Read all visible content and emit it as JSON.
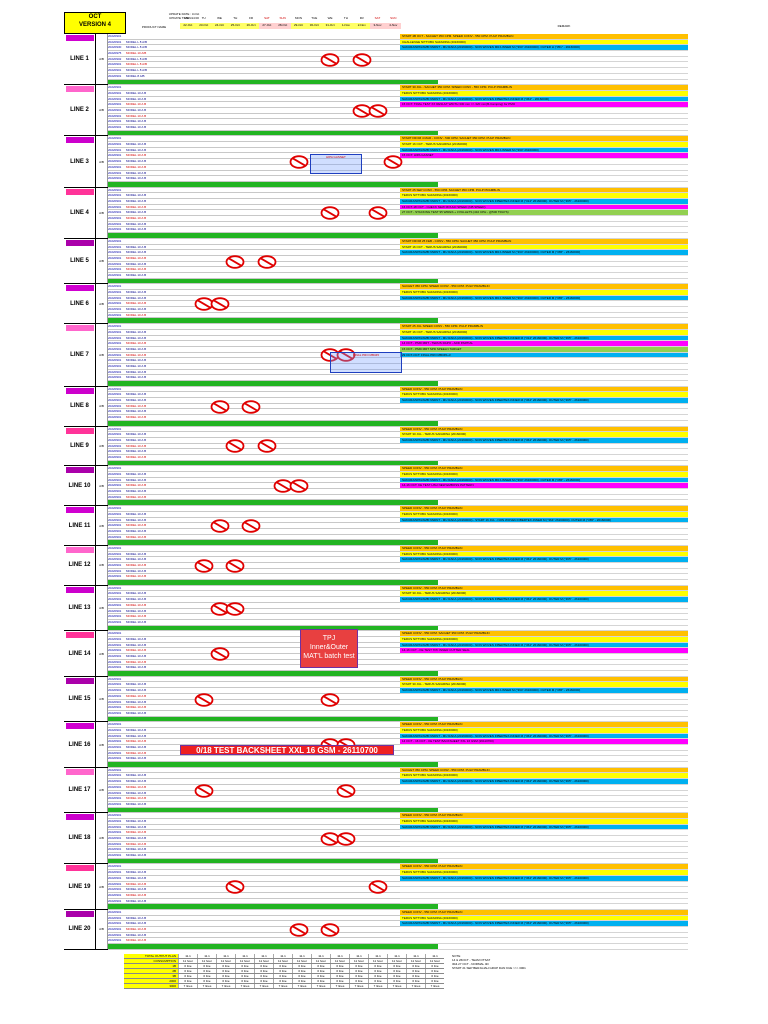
{
  "header": {
    "month": "OCT",
    "version": "VERSION 4",
    "update_date": "UPDATE DATE : 3-Oct",
    "update_time": "UPDATE TIME : 14:00",
    "product_col": "PRODUCT NAME",
    "remark_col": "REMARK",
    "days": [
      "MON",
      "TU",
      "WE",
      "TH",
      "FR",
      "SAT",
      "SUN",
      "MON",
      "TUE",
      "WE",
      "TH",
      "FR",
      "SAT",
      "SUN"
    ],
    "dates": [
      "22-Oct",
      "23-Oct",
      "24-Oct",
      "25-Oct",
      "26-Oct",
      "27-Oct",
      "28-Oct",
      "29-Oct",
      "30-Oct",
      "31-Oct",
      "1-Nov",
      "2-Nov",
      "3-Nov",
      "4-Nov"
    ]
  },
  "lines": [
    {
      "name": "LINE 1",
      "shift": "A/B",
      "rows": [
        "20220901",
        "20220901 MODEL L 8 A/B",
        "20220930 MODEL L 8 A/B",
        "20220975 MODEL 10 A/B",
        "20220902 MODEL L 8 A/B",
        "20220901 MODEL L 8 A/B",
        "20220901 MODEL L 8 A/B",
        "20220901 MODEL 8 A/B"
      ],
      "remarks": [
        "START 4B OCT - SACHET 350 CPM. SPEED CONV - 550 CPM. PULP PRAMBLIN",
        "CHALLENGE NITTOBU SAFARINA (20160000)",
        "SAKURA/NPD/AMB NNDNT - MU RAKA (20160000) - NON WOVEN MRJ-INNER M (\"364\" 26160000). OUTER H (\"351\" - 26160000)"
      ]
    },
    {
      "name": "LINE 2",
      "shift": "A/B",
      "rows": [
        "20220901",
        "20220901 MODEL 10 A B",
        "20220901 MODEL 10 A B",
        "20220901 MODEL 10 A B",
        "20220901 MODEL 10 A B",
        "20220901 MODEL 10 A B",
        "20220901 MODEL 10 A B",
        "20220901 MODEL 10 A B"
      ],
      "remarks": [
        "START 30 JUL - SACHET 350 CPM. SPEED CONV - 550 CPM. PULP PRAMBLIN",
        "TERUS NITTOBU SAFARINA (20160000)",
        "SAKURA/NPD/AMB NNDNT - MU RAKA (20160000) - NON WOVEN FIBERTEX-INNER M (\"364\" - 26160000)",
        "15 OCT: TRIAL TEST XX RESULT WIDTH 330 mm => 320 mm(B-Camping) for PMO"
      ]
    },
    {
      "name": "LINE 3",
      "shift": "A/B",
      "rows": [
        "20220901",
        "20220901 MODEL 10 A B",
        "20220901 MODEL 10 A B",
        "20220901 MODEL 10 A B",
        "20220901 MODEL 10 A B",
        "20220901 MODEL 10 A B",
        "20220901 MODEL 10 A B",
        "20220901 MODEL 10 A B"
      ],
      "remarks": [
        "START FROM 4 MAR - CONV - 500 CPM. SACHET 350 CPM. PULP PRAMBLIN",
        "START 16 OCT - TERUS SAFARINA (20160000)",
        "SAKURA/NPD/AMB NNDNT - MU RAKA (20160000) - NON WOVEN MRJ-INNER M (\"364\" 26160000)",
        "15 OCT: HIPA GASNET"
      ]
    },
    {
      "name": "LINE 4",
      "shift": "A/B",
      "rows": [
        "20220901",
        "20220901 MODEL 10 A B",
        "20220901 MODEL 10 A B",
        "20220901 MODEL 10 A B",
        "20220901 MODEL 10 A B",
        "20220901 MODEL 10 A B",
        "20220901 MODEL 10 A B",
        "20220901 MODEL 10 A B"
      ],
      "remarks": [
        "START 25 SEP CONV - 550 CPM. SACHET 350 CPM. PULP PRAMBLIN",
        "TERUS NITTOBU SAFARINA (20160000)",
        "SAKURA/NPD/AMB NNDNT - MU RAKA (20160000) - NON WOVEN FIBERTEX-INNER M (\"314\" 26160000). OUTER M (\"365\" - 26160000)",
        "16 OCT-18 OCT - CHECK NEW MOULD SPEED (NB SPEED)",
        "27 OCT - STACKING TEST 95 WIRES + 3 PALLETS (410 CPH - @500 TRAYS)"
      ]
    },
    {
      "name": "LINE 5",
      "shift": "A/B",
      "rows": [
        "20220901",
        "20220901 MODEL 10 A B",
        "20220901 MODEL 10 A B",
        "20220901 MODEL 10 A B",
        "20220901 MODEL 10 A B",
        "20220901 MODEL 10 A B",
        "20220901 MODEL 10 A B"
      ],
      "remarks": [
        "START FROM 25 FEB - CONV - 550 CPM. SACHET 350 CPM. PULP PRAMBLIN",
        "START 16 OCT - TERUS SAFARINA (20160000)",
        "SAKURA/NPD/AMB NNDNT - MU RAKA (20160000) - NON WOVEN MRJ-INNER M (\"364\" 26160000). OUTER M (\"365\" - 26160000)"
      ]
    },
    {
      "name": "LINE 6",
      "shift": "A/B",
      "rows": [
        "20220901",
        "20220901 MODEL 10 A B",
        "20220901 MODEL 10 A B",
        "20220901 MODEL 10 A B",
        "20220901 MODEL 10 A B",
        "20220901 MODEL 10 A B"
      ],
      "remarks": [
        "SACHET 350 CPM. SPEED CONV - 550 CPM. PULP PRAMBLIN",
        "TERUS NITTOBU SAFARINA (20160000)",
        "SAKURA/NPD/AMB NNDNT - MU RAKA (20160000) - NON WOVEN MRJ-INNER M (\"364\" 26160000). OUTER M (\"365\" - 26160000)"
      ]
    },
    {
      "name": "LINE 7",
      "shift": "A/B",
      "rows": [
        "20220901",
        "20220901 MODEL 10 A B",
        "20220901 MODEL 10 A B",
        "20220901 MODEL 10 A B",
        "20220901 MODEL 10 A B",
        "20220901 MODEL 10 A B",
        "20220901 MODEL 10 A B",
        "20220901 MODEL 10 A B",
        "20220901 MODEL 10 A B",
        "20220901 MODEL 10 A B"
      ],
      "remarks": [
        "START 25 JUL SPEED CONV - 550 CPM. PULP PRAMBLIN",
        "START 16 OCT - TERUS SAFARINA (20160000)",
        "SAKURA/NPD/AMB NNDNT - MU RAKA (20160000) - NON WOVEN FIBERTEX-INNER M (\"314\" 26160000). OUTER M (\"365\" - 26160000)",
        "14 OCT - PMD MRT - TERUS RAPO - ADD PARTIAL",
        "15 OCT - PMD MRT SPD SPEELN TARGET",
        "29 OCT-OCT: FINAL PRO MB345+3"
      ]
    },
    {
      "name": "LINE 8",
      "shift": "A/B",
      "rows": [
        "20220901",
        "20220901 MODEL 10 A B",
        "20220901 MODEL 10 A B",
        "20220901 MODEL 10 A B",
        "20220901 MODEL 10 A B",
        "20220901 MODEL 10 A B"
      ],
      "remarks": [
        "SPEED CONV - 550 CPM. PULP PRAMBLIN",
        "TERUS NITTOBU SAFARINA (20160000)",
        "SAKURA/NPD/AMB NNDNT - MU RAKA (20160000) - NON WOVEN FIBERTEX-INNER M (\"364\" 26160000). OUTER M (\"365\" - 26160000)"
      ]
    },
    {
      "name": "LINE 9",
      "shift": "A/B",
      "rows": [
        "20220901",
        "20220901 MODEL 10 A B",
        "20220901 MODEL 10 A B",
        "20220901 MODEL 10 A B",
        "20220901 MODEL 10 A B",
        "20220901 MODEL 10 A B"
      ],
      "remarks": [
        "SPEED CONV - 550 CPM. PULP PRAMBLIN",
        "START 30 JUL - TERUS SAFARINA (20160000)",
        "SAKURA/NPD/AMB NNDNT - MU RAKA (20160000) - NON WOVEN FIBERTEX-INNER M (\"364\" 26160000). OUTER M (\"365\" - 26160000)"
      ]
    },
    {
      "name": "LINE 10",
      "shift": "A/B",
      "rows": [
        "20220901",
        "20220901 MODEL 10 A B",
        "20220901 MODEL 10 A B",
        "20220901 MODEL 10 A B",
        "20220901 MODEL 10 A B",
        "20220901 MODEL 10 A B"
      ],
      "remarks": [
        "SPEED CONV - 550 CPM. PULP PRAMBLIN",
        "TERUS NITTOBU SAFARINA (20160000)",
        "SAKURA/NPD/AMB NNDNT - MU RAKA (20160000) - NON WOVEN MRJ-INNER M (\"364\" 26160000). OUTER M (\"365\" - 26160000)",
        "14-16 OCT: KE TEST HSU NEW EMBOSS PATTERN"
      ]
    },
    {
      "name": "LINE 11",
      "shift": "A/B",
      "rows": [
        "20220901",
        "20220901 MODEL 10 A B",
        "20220901 MODEL 10 A B",
        "20220901 MODEL 10 A B",
        "20220901 MODEL 10 A B",
        "20220901 MODEL 10 A B"
      ],
      "remarks": [
        "SPEED CONV - 550 CPM. PULP PRAMBLIN",
        "TERUS NITTOBU SAFARINA (20160000)",
        "SAKURA/NPD/AMB NNDNT - MU RAKA (20160000) - START 16 JUL - NON WOVEN FIBERTEX-INNER M (\"364\" 26160000). OUTER M (\"365\" - 26160000)"
      ]
    },
    {
      "name": "LINE 12",
      "shift": "A/B",
      "rows": [
        "20220901",
        "20220901 MODEL 10 A B",
        "20220901 MODEL 10 A B",
        "20220901 MODEL 10 A B",
        "20220901 MODEL 10 A B",
        "20220901 MODEL 10 A B"
      ],
      "remarks": [
        "SPEED CONV - 550 CPM. PULP PRAMBLIN",
        "TERUS NITTOBU SAFARINA (20160000)",
        "SAKURA/NPD/AMB NNDNT - MU RAKA (20160000) - NON WOVEN FIBERTEX-INNER M (\"364\" 26160000). OUTER M (\"365\" - 26160000)"
      ]
    },
    {
      "name": "LINE 13",
      "shift": "A/B",
      "rows": [
        "20220901",
        "20220901 MODEL 10 A B",
        "20220901 MODEL 10 A B",
        "20220901 MODEL 10 A B",
        "20220901 MODEL 10 A B",
        "20220901 MODEL 10 A B",
        "20220901 MODEL 10 A B"
      ],
      "remarks": [
        "SPEED CONV - 550 CPM. PULP PRAMBLIN",
        "START 30 JUL - TERUS SAFARINA (20160000)",
        "SAKURA/NPD/AMB NNDNT - MU RAKA (20160000) - NON WOVEN FIBERTEX-INNER M (\"364\" 26160000). OUTER M (\"365\" - 26160000)"
      ]
    },
    {
      "name": "LINE 14",
      "shift": "A/B",
      "rows": [
        "20220901",
        "20220901 MODEL 10 A B",
        "20220901 MODEL 10 A B",
        "20220901 MODEL 10 A B",
        "20220901 MODEL 10 A B",
        "20220901 MODEL 10 A B",
        "20220901 MODEL 10 A B"
      ],
      "remarks": [
        "SPEED CONV - 550 CPM. SACHET 350 CPM. PULP PRAMBLIN",
        "TERUS NITTOBU SAFARINA (20160000)",
        "SAKURA/NPD/AMB NNDNT - MU RAKA (20160000) - NON WOVEN FIBERTEX-INNER M (\"364\" 26160000). OUTER M (\"365\" - 26160000)",
        "14-16 OCT - KE TEST TPF INNER CUTTER SEAL"
      ]
    },
    {
      "name": "LINE 15",
      "shift": "A/B",
      "rows": [
        "20220901",
        "20220901 MODEL 10 A B",
        "20220901 MODEL 10 A B",
        "20220901 MODEL 10 A B",
        "20220901 MODEL 10 A B",
        "20220901 MODEL 10 A B",
        "20220901 MODEL 10 A B"
      ],
      "remarks": [
        "SPEED CONV - 550 CPM. PULP PRAMBLIN",
        "START 30 JUL - TERUS SAFARINA (20160000)",
        "SAKURA/NPD/AMB NNDNT - MU RAKA (20160000) - NON WOVEN MRJ-INNER M (\"364\" 26160000). OUTER M (\"365\" - 26160000)"
      ]
    },
    {
      "name": "LINE 16",
      "shift": "A/B",
      "rows": [
        "20220901",
        "20220901 MODEL 10 A B",
        "20220901 MODEL 10 A B",
        "20220901 MODEL 10 A B",
        "20220901 MODEL 10 A B",
        "20220901 MODEL 10 A B",
        "20220901 MODEL 10 A B"
      ],
      "remarks": [
        "SPEED CONV - 550 CPM. PULP PRAMBLIN",
        "TERUS NITTOBU SAFARINA (20160000)",
        "SAKURA/NPD/AMB NNDNT - MU RAKA (20160000) - NON WOVEN FIBERTEX-INNER M (\"364\" 26160000). OUTER M (\"365\" - 26160000)",
        "14 OCT - 16 OCT - KE TEST BACKSHEET XXL 16 GSM (26110700)"
      ]
    },
    {
      "name": "LINE 17",
      "shift": "A/B",
      "rows": [
        "20220901",
        "20220901 MODEL 10 A B",
        "20220901 MODEL 10 A B",
        "20220901 MODEL 10 A B",
        "20220901 MODEL 10 A B",
        "20220901 MODEL 10 A B",
        "20220901 MODEL 10 A B"
      ],
      "remarks": [
        "SACHET 350 CPM. SPEED CONV - 550 CPM. PULP PRAMBLIN",
        "TERUS NITTOBU SAFARINA (20160000)",
        "SAKURA/NPD/AMB NNDNT - MU RAKA (20160000) - NON WOVEN FIBERTEX-INNER M (\"364\" 26160000). OUTER M (\"365\" - 26160000)"
      ]
    },
    {
      "name": "LINE 18",
      "shift": "A/B",
      "rows": [
        "20220901",
        "20220901 MODEL 10 A B",
        "20220901 MODEL 10 A B",
        "20220901 MODEL 10 A B",
        "20220901 MODEL 10 A B",
        "20220901 MODEL 10 A B",
        "20220901 MODEL 10 A B",
        "20220901 MODEL 10 A B"
      ],
      "remarks": [
        "SPEED CONV - 550 CPM. PULP PRAMBLIN",
        "TERUS NITTOBU SAFARINA (20160000)",
        "SAKURA/NPD/AMB NNDNT - MU RAKA (20160000) - NON WOVEN FIBERTEX-INNER M (\"364\" 26160000). OUTER M (\"365\" - 26160000)"
      ]
    },
    {
      "name": "LINE 19",
      "shift": "A/B",
      "rows": [
        "20220901",
        "20220901 MODEL 10 A B",
        "20220901 MODEL 10 A B",
        "20220901 MODEL 10 A B",
        "20220901 MODEL 10 A B",
        "20220901 MODEL 10 A B",
        "20220901 MODEL 10 A B"
      ],
      "remarks": [
        "SPEED CONV - 550 CPM. PULP PRAMBLIN",
        "TERUS NITTOBU SAFARINA (20160000)",
        "SAKURA/NPD/AMB NNDNT - MU RAKA (20160000) - NON WOVEN FIBERTEX-INNER M (\"364\" 26160000). OUTER M (\"365\" - 26160000)"
      ]
    },
    {
      "name": "LINE 20",
      "shift": "A/B",
      "rows": [
        "20220901",
        "20220901 MODEL 10 A B",
        "20220901 MODEL 10 A B",
        "20220901 MODEL 10 A B",
        "20220901 MODEL 10 A B",
        "20220901 MODEL 10 A B"
      ],
      "remarks": [
        "SPEED CONV - 550 CPM. PULP PRAMBLIN",
        "TERUS NITTOBU SAFARINA (20160000)",
        "SAKURA/NPD/AMB NNDNT - MU RAKA (20160000) - NON WOVEN FIBERTEX-INNER M (\"364\" 26160000). OUTER M (\"365\" - 26160000)"
      ]
    }
  ],
  "overlays": {
    "line3_box": "HIPA GASNET",
    "line7_box": "FINAL PRO MB345",
    "line14_box": "TPJ\nInner&Outer\nMAT'L batch test",
    "line16_banner": "0/18 TEST BACKSHEET XXL 16 GSM - 26110700"
  },
  "footer": {
    "rows": [
      {
        "label": "TOTAL OUTPUT PLAN",
        "values": [
          "11.1",
          "11.1",
          "11.1",
          "11.1",
          "11.1",
          "11.1",
          "11.1",
          "11.1",
          "11.1",
          "11.1",
          "11.1",
          "11.1",
          "11.1",
          "11.1"
        ]
      },
      {
        "label": "CONSUMPTION",
        "values": [
          "11 hour",
          "11 hour",
          "11 hour",
          "11 hour",
          "11 hour",
          "11 hour",
          "11 hour",
          "11 hour",
          "11 hour",
          "11 hour",
          "11 hour",
          "11 hour",
          "11 hour",
          "11 hour"
        ]
      },
      {
        "label": "1B",
        "values": [
          "0 line",
          "0 line",
          "0 line",
          "0 line",
          "0 line",
          "0 line",
          "0 line",
          "0 line",
          "0 line",
          "0 line",
          "0 line",
          "0 line",
          "0 line",
          "0 line"
        ]
      },
      {
        "label": "2B",
        "values": [
          "0 line",
          "0 line",
          "0 line",
          "0 line",
          "0 line",
          "0 line",
          "0 line",
          "0 line",
          "0 line",
          "0 line",
          "0 line",
          "0 line",
          "0 line",
          "0 line"
        ]
      },
      {
        "label": "3B",
        "values": [
          "0 line",
          "0 line",
          "0 line",
          "0 line",
          "0 line",
          "0 line",
          "0 line",
          "0 line",
          "0 line",
          "0 line",
          "0 line",
          "0 line",
          "0 line",
          "0 line"
        ]
      },
      {
        "label": "2000",
        "values": [
          "0 line",
          "0 line",
          "0 line",
          "0 line",
          "0 line",
          "0 line",
          "0 line",
          "0 line",
          "0 line",
          "0 line",
          "0 line",
          "0 line",
          "0 line",
          "0 line"
        ]
      },
      {
        "label": "3000",
        "values": [
          "7 lines",
          "7 lines",
          "7 lines",
          "7 lines",
          "7 lines",
          "7 lines",
          "7 lines",
          "7 lines",
          "7 lines",
          "7 lines",
          "7 lines",
          "7 lines",
          "7 lines",
          "7 lines"
        ]
      }
    ],
    "note": "NOTE\n14 & 26OCT - TEAM OTSAT\n30& 27 OCT - NORMAL 4D\nSTART 21 SEP BERJAJAH GRUP DAN KUE >>> 3001"
  }
}
